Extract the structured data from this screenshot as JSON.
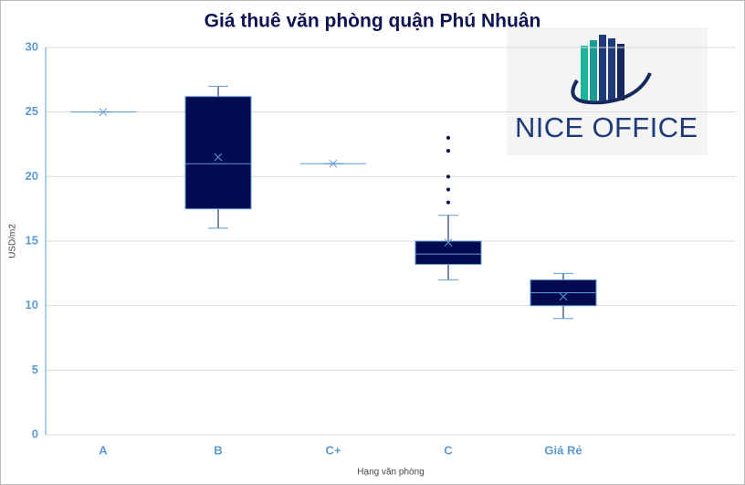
{
  "chart_data": {
    "type": "box",
    "title": "Giá thuê văn phòng quận Phú Nhuận",
    "x_label": "Hạng văn phòng",
    "y_label": "USD/m2",
    "categories": [
      "A",
      "B",
      "C+",
      "C",
      "Giá Rẻ",
      null
    ],
    "boxes": [
      {
        "min": 25,
        "q1": 25,
        "median": 25,
        "q3": 25,
        "max": 25,
        "mean": 25,
        "outliers": []
      },
      {
        "min": 16,
        "q1": 17.5,
        "median": 21,
        "q3": 26.2,
        "max": 27,
        "mean": 21.5,
        "outliers": []
      },
      {
        "min": 21,
        "q1": 21,
        "median": 21,
        "q3": 21,
        "max": 21,
        "mean": 21,
        "outliers": []
      },
      {
        "min": 12,
        "q1": 13.2,
        "median": 14,
        "q3": 15,
        "max": 17,
        "mean": 14.9,
        "outliers": [
          18,
          19,
          20,
          22,
          23
        ]
      },
      {
        "min": 9,
        "q1": 10,
        "median": 11,
        "q3": 12,
        "max": 12.5,
        "mean": 10.7,
        "outliers": []
      },
      null
    ],
    "color": "#000c4f",
    "median_color": "#5b9bd5",
    "ylim": [
      0,
      30
    ],
    "yticks": [
      0,
      5,
      10,
      15,
      20,
      25,
      30
    ],
    "grid": true
  },
  "logo": {
    "text": "NICE OFFICE"
  }
}
